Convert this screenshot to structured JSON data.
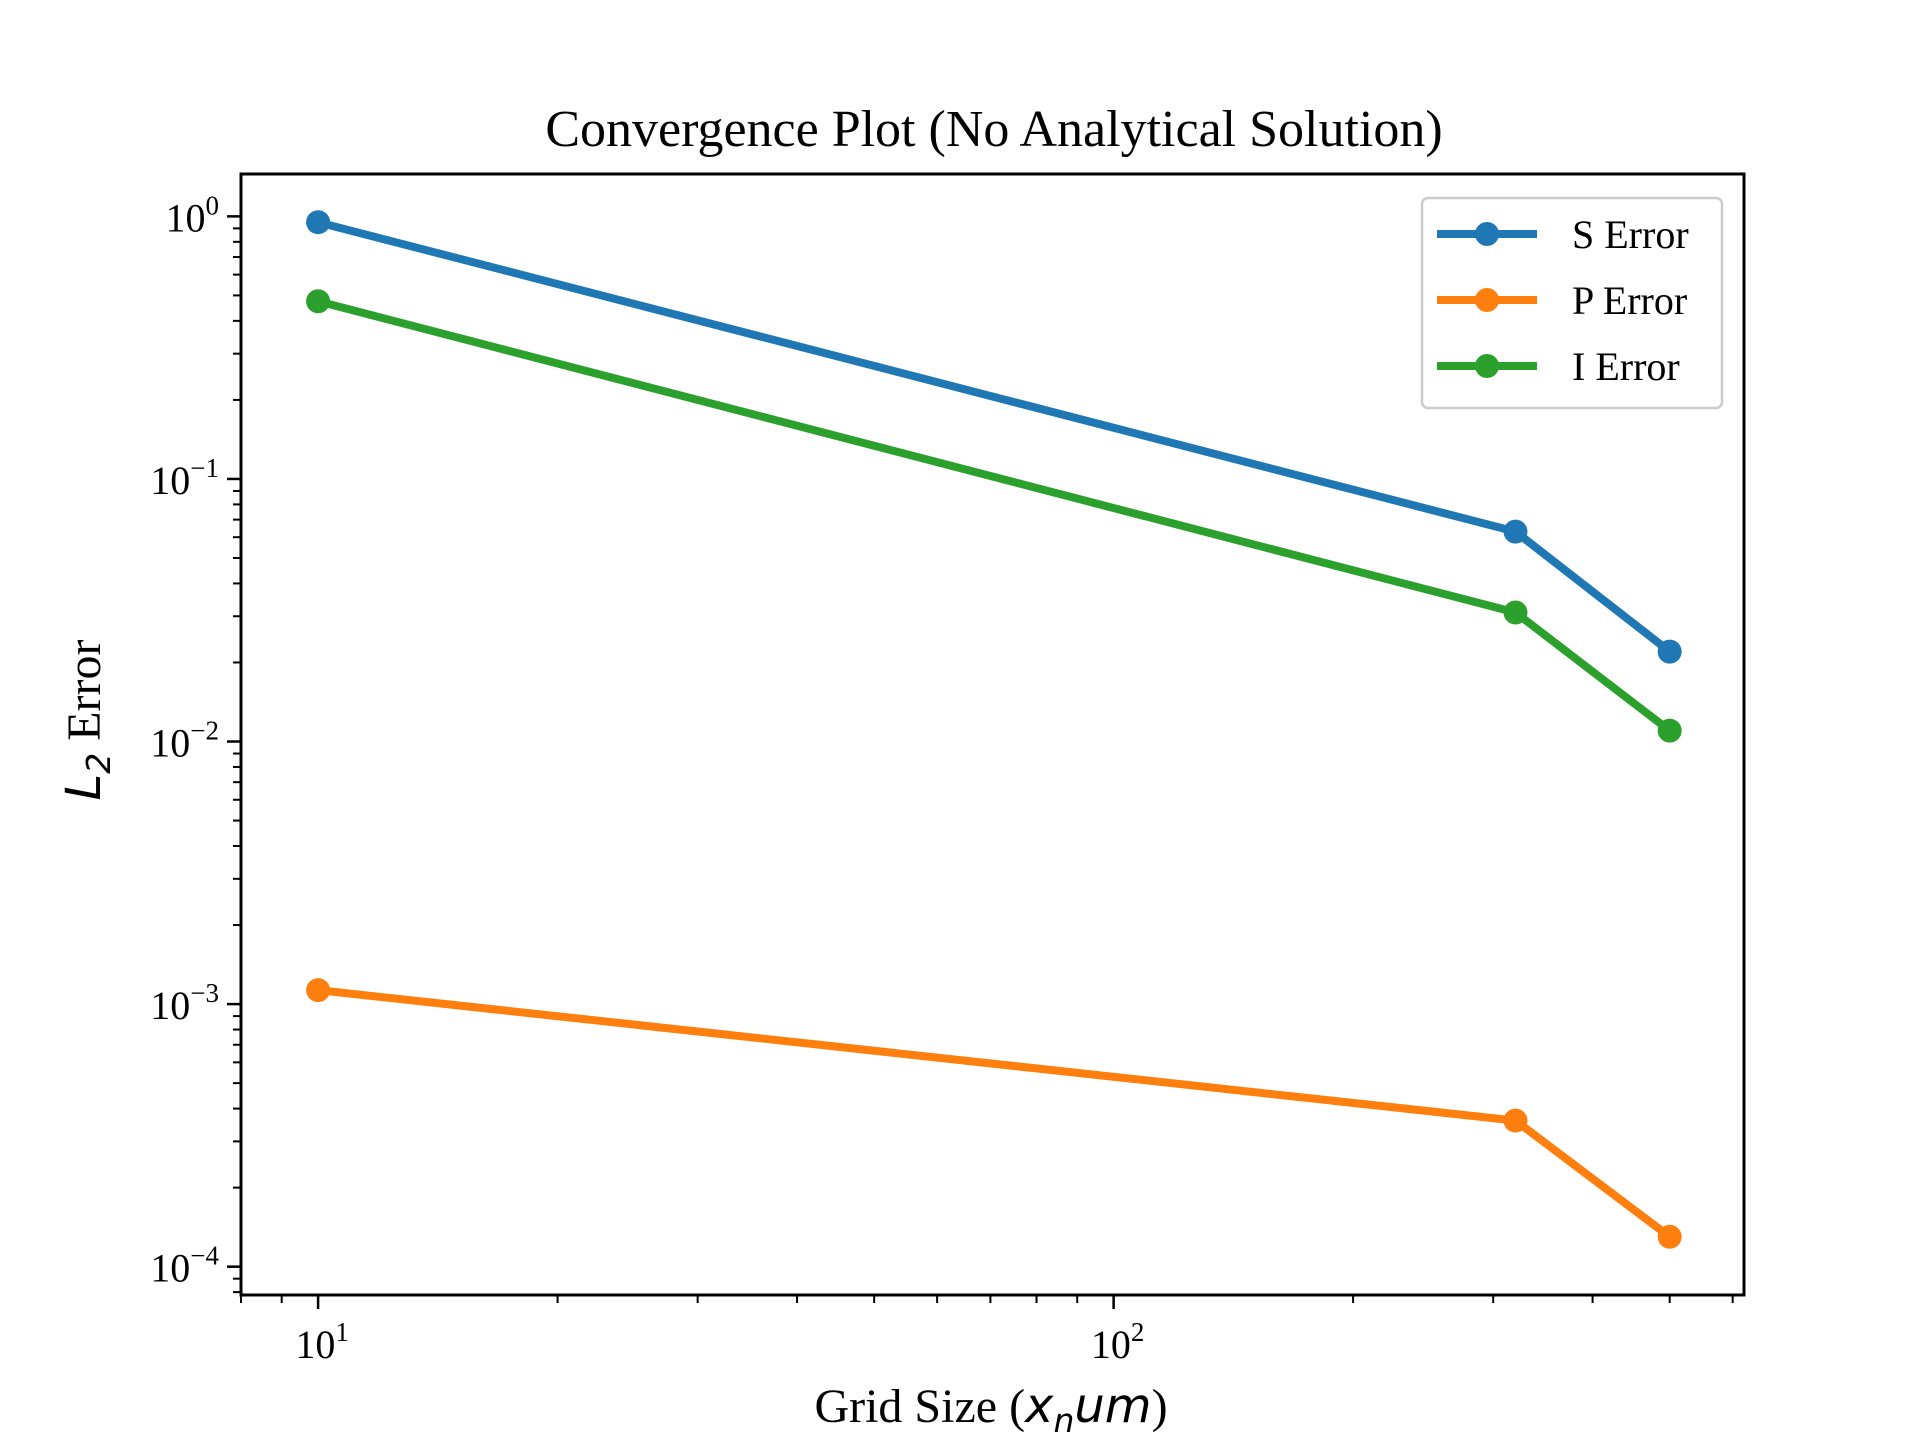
{
  "chart_data": {
    "type": "line",
    "title": "Convergence Plot (No Analytical Solution)",
    "xlabel": "Grid Size (x_n um)",
    "ylabel": "L_2 Error",
    "xscale": "log",
    "yscale": "log",
    "xlim": [
      8,
      620
    ],
    "ylim": [
      7.8e-05,
      1.45
    ],
    "x_ticks": [
      {
        "base": "10",
        "exp": "1",
        "value": 10
      },
      {
        "base": "10",
        "exp": "2",
        "value": 100
      }
    ],
    "y_ticks": [
      {
        "base": "10",
        "exp": "0",
        "value": 1
      },
      {
        "base": "10",
        "exp": "−1",
        "value": 0.1
      },
      {
        "base": "10",
        "exp": "−2",
        "value": 0.01
      },
      {
        "base": "10",
        "exp": "−3",
        "value": 0.001
      },
      {
        "base": "10",
        "exp": "−4",
        "value": 0.0001
      }
    ],
    "x": [
      10,
      320,
      500
    ],
    "series": [
      {
        "name": "S Error",
        "color": "#1f77b4",
        "values": [
          0.95,
          0.063,
          0.022
        ]
      },
      {
        "name": "P Error",
        "color": "#ff7f0e",
        "values": [
          0.00113,
          0.00036,
          0.00013
        ]
      },
      {
        "name": "I Error",
        "color": "#2ca02c",
        "values": [
          0.475,
          0.031,
          0.011
        ]
      }
    ],
    "grid": false,
    "legend": "top-right"
  }
}
